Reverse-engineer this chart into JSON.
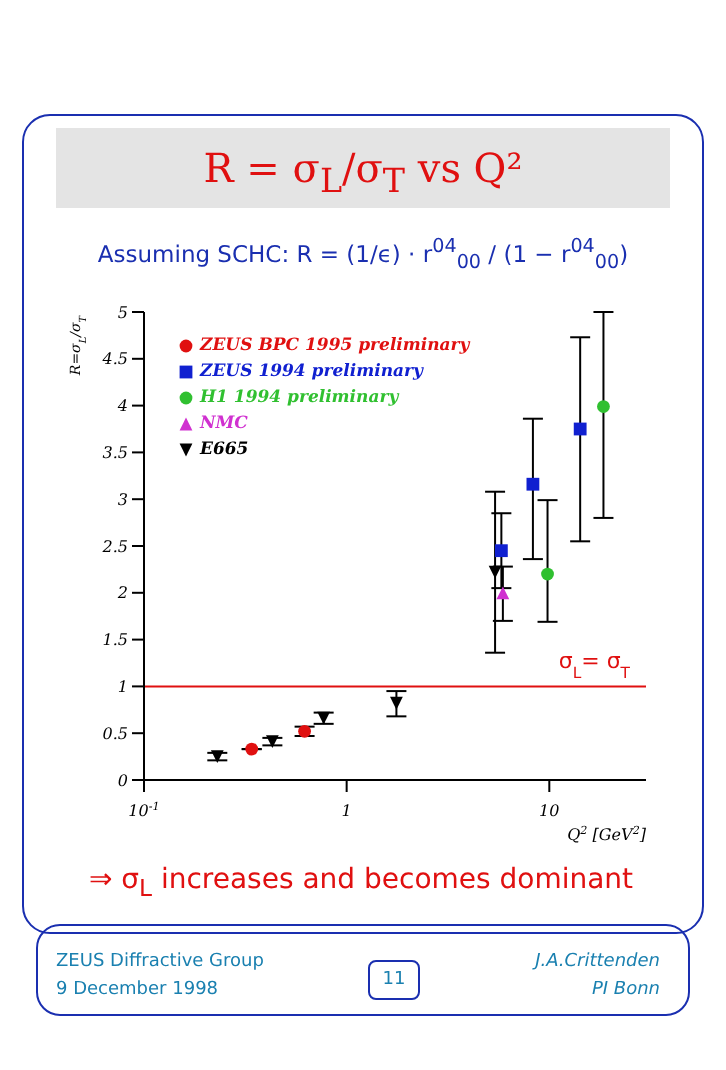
{
  "chart_data": {
    "type": "scatter",
    "title": "R = σ$_{L}$/σ$_{T}$ vs Q²",
    "subtitle": "Assuming SCHC: R = (1/ϵ) · r$^{04}$$_{00}$ / (1 − r$^{04}$$_{00}$)",
    "xlabel": "Q$^{2}$ [GeV$^{2}$]",
    "ylabel": "R=σ$_{L}$/σ$_{T}$",
    "log": "x",
    "xlim": [
      0.1,
      30
    ],
    "xticks": [
      {
        "value": 0.1,
        "label": "10$^{-1}$"
      },
      1,
      10
    ],
    "ylim": [
      0,
      5
    ],
    "yticks": [
      0,
      0.5,
      1,
      1.5,
      2,
      2.5,
      3,
      3.5,
      4,
      4.5,
      5
    ],
    "grid": false,
    "legend": "top left",
    "series": [
      {
        "name": "ZEUS BPC 1995 preliminary",
        "color": "#e01010",
        "marker": "circle",
        "x": [
          0.34,
          0.62
        ],
        "values": [
          0.33,
          0.52
        ],
        "errors": [
          null,
          0.05
        ]
      },
      {
        "name": "ZEUS 1994 preliminary",
        "color": "#1020d0",
        "marker": "square",
        "x": [
          5.8,
          8.3,
          14.2
        ],
        "values": [
          2.45,
          3.16,
          3.75
        ],
        "errors": [
          0.4,
          [
            2.36,
            3.86
          ],
          [
            2.55,
            4.73
          ]
        ]
      },
      {
        "name": "H1 1994 preliminary",
        "color": "#30c030",
        "marker": "circle",
        "x": [
          9.8,
          18.5
        ],
        "values": [
          2.2,
          3.99
        ],
        "errors": [
          [
            1.69,
            2.99
          ],
          [
            2.8,
            5
          ]
        ]
      },
      {
        "name": "NMC",
        "color": "#d030d0",
        "marker": "triangle",
        "x": [
          5.9
        ],
        "values": [
          2.0
        ],
        "errors": [
          [
            1.7,
            2.28
          ]
        ]
      },
      {
        "name": "E665",
        "color": "#000000",
        "marker": "triangle-down",
        "x": [
          0.23,
          0.43,
          0.77,
          1.76,
          5.4
        ],
        "values": [
          0.25,
          0.41,
          0.66,
          0.82,
          2.22
        ],
        "errors": [
          0.04,
          0.04,
          0.06,
          [
            0.68,
            0.95
          ],
          [
            1.36,
            3.08
          ]
        ]
      }
    ],
    "ref_lines": [
      {
        "axis": "y",
        "value": 1,
        "label": "σ$_{L}$= σ$_{T}$",
        "color": "#e01010"
      }
    ],
    "annotations": [
      "⇒ σ$_{L}$ increases and becomes dominant",
      "ZEUS Diffractive Group",
      "9 December 1998",
      "11",
      "J.A.Crittenden",
      "PI Bonn"
    ]
  }
}
